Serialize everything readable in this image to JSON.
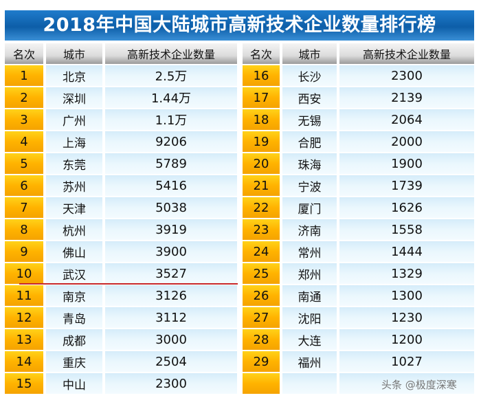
{
  "title": "2018年中国大陆城市高新技术企业数量排行榜",
  "headers": {
    "rank": "名次",
    "city": "城市",
    "count": "高新技术企业数量"
  },
  "left": [
    {
      "rank": "1",
      "city": "北京",
      "count": "2.5万"
    },
    {
      "rank": "2",
      "city": "深圳",
      "count": "1.44万"
    },
    {
      "rank": "3",
      "city": "广州",
      "count": "1.1万"
    },
    {
      "rank": "4",
      "city": "上海",
      "count": "9206"
    },
    {
      "rank": "5",
      "city": "东莞",
      "count": "5789"
    },
    {
      "rank": "6",
      "city": "苏州",
      "count": "5416"
    },
    {
      "rank": "7",
      "city": "天津",
      "count": "5038"
    },
    {
      "rank": "8",
      "city": "杭州",
      "count": "3919"
    },
    {
      "rank": "9",
      "city": "佛山",
      "count": "3900"
    },
    {
      "rank": "10",
      "city": "武汉",
      "count": "3527"
    },
    {
      "rank": "11",
      "city": "南京",
      "count": "3126"
    },
    {
      "rank": "12",
      "city": "青岛",
      "count": "3112"
    },
    {
      "rank": "13",
      "city": "成都",
      "count": "3000"
    },
    {
      "rank": "14",
      "city": "重庆",
      "count": "2504"
    },
    {
      "rank": "15",
      "city": "中山",
      "count": "2300"
    }
  ],
  "right": [
    {
      "rank": "16",
      "city": "长沙",
      "count": "2300"
    },
    {
      "rank": "17",
      "city": "西安",
      "count": "2139"
    },
    {
      "rank": "18",
      "city": "无锡",
      "count": "2064"
    },
    {
      "rank": "19",
      "city": "合肥",
      "count": "2000"
    },
    {
      "rank": "20",
      "city": "珠海",
      "count": "1900"
    },
    {
      "rank": "21",
      "city": "宁波",
      "count": "1739"
    },
    {
      "rank": "22",
      "city": "厦门",
      "count": "1626"
    },
    {
      "rank": "23",
      "city": "济南",
      "count": "1558"
    },
    {
      "rank": "24",
      "city": "常州",
      "count": "1444"
    },
    {
      "rank": "25",
      "city": "郑州",
      "count": "1329"
    },
    {
      "rank": "26",
      "city": "南通",
      "count": "1300"
    },
    {
      "rank": "27",
      "city": "沈阳",
      "count": "1230"
    },
    {
      "rank": "28",
      "city": "大连",
      "count": "1200"
    },
    {
      "rank": "29",
      "city": "福州",
      "count": "1027"
    },
    {
      "rank": "",
      "city": "",
      "count": ""
    }
  ],
  "watermark": "头条 @极度深寒",
  "colors": {
    "title_bg": "#0d5ea8",
    "rank_bg": "#ffb300",
    "cell_bg": "#eaf7fd",
    "highlight_line": "#c8282a"
  }
}
